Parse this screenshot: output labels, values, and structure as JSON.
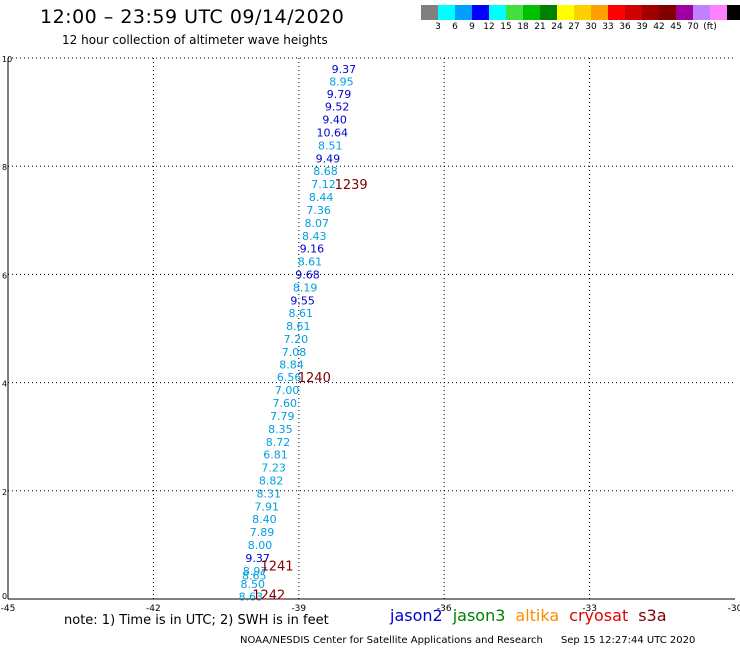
{
  "header": {
    "title": "12:00 – 23:59 UTC 09/14/2020",
    "subtitle": "12 hour collection of altimeter wave heights"
  },
  "color_scale": {
    "colors": [
      "#808080",
      "#00ffff",
      "#00a0ff",
      "#0000ff",
      "#00ffff",
      "#40e040",
      "#00c000",
      "#008000",
      "#ffff00",
      "#ffd000",
      "#ffa000",
      "#ff0000",
      "#d00000",
      "#a00000",
      "#800000",
      "#a000a0",
      "#c080ff",
      "#ff80ff",
      "#000000"
    ],
    "labels": [
      "3",
      "6",
      "9",
      "12",
      "15",
      "18",
      "21",
      "24",
      "27",
      "30",
      "33",
      "36",
      "39",
      "42",
      "45",
      "70",
      "(ft)"
    ]
  },
  "chart_data": {
    "type": "scatter",
    "title": "12:00 – 23:59 UTC 09/14/2020",
    "subtitle": "12 hour collection of altimeter wave heights",
    "xlim": [
      -45,
      -30
    ],
    "ylim": [
      0,
      10
    ],
    "x_ticks": [
      "-45",
      "-42",
      "-39",
      "-36",
      "-33",
      "-30"
    ],
    "y_ticks": [
      "0",
      "2",
      "4",
      "6",
      "8",
      "10"
    ],
    "grid": true,
    "points": [
      {
        "x": -38.07,
        "y": 9.8,
        "v": "9.37",
        "color": "#0000cc"
      },
      {
        "x": -38.12,
        "y": 9.57,
        "v": "8.95",
        "color": "#00a0e0"
      },
      {
        "x": -38.17,
        "y": 9.33,
        "v": "9.79",
        "color": "#0000cc"
      },
      {
        "x": -38.21,
        "y": 9.1,
        "v": "9.52",
        "color": "#0000cc"
      },
      {
        "x": -38.26,
        "y": 8.86,
        "v": "9.40",
        "color": "#0000cc"
      },
      {
        "x": -38.31,
        "y": 8.62,
        "v": "10.64",
        "color": "#0000cc"
      },
      {
        "x": -38.35,
        "y": 8.38,
        "v": "8.51",
        "color": "#00a0e0"
      },
      {
        "x": -38.4,
        "y": 8.14,
        "v": "9.49",
        "color": "#0000cc"
      },
      {
        "x": -38.45,
        "y": 7.91,
        "v": "8.68",
        "color": "#00a0e0"
      },
      {
        "x": -38.49,
        "y": 7.67,
        "v": "7.12",
        "color": "#00a0e0"
      },
      {
        "x": -38.54,
        "y": 7.43,
        "v": "8.44",
        "color": "#00a0e0"
      },
      {
        "x": -38.59,
        "y": 7.19,
        "v": "7.36",
        "color": "#00a0e0"
      },
      {
        "x": -38.63,
        "y": 6.95,
        "v": "8.07",
        "color": "#00a0e0"
      },
      {
        "x": -38.68,
        "y": 6.71,
        "v": "8.43",
        "color": "#00a0e0"
      },
      {
        "x": -38.73,
        "y": 6.48,
        "v": "9.16",
        "color": "#0000cc"
      },
      {
        "x": -38.77,
        "y": 6.24,
        "v": "8.61",
        "color": "#00a0e0"
      },
      {
        "x": -38.82,
        "y": 6.0,
        "v": "9.68",
        "color": "#0000cc"
      },
      {
        "x": -38.87,
        "y": 5.76,
        "v": "8.19",
        "color": "#00a0e0"
      },
      {
        "x": -38.92,
        "y": 5.52,
        "v": "9.55",
        "color": "#0000cc"
      },
      {
        "x": -38.96,
        "y": 5.29,
        "v": "8.61",
        "color": "#00a0e0"
      },
      {
        "x": -39.01,
        "y": 5.05,
        "v": "8.61",
        "color": "#00a0e0"
      },
      {
        "x": -39.06,
        "y": 4.81,
        "v": "7.20",
        "color": "#00a0e0"
      },
      {
        "x": -39.1,
        "y": 4.57,
        "v": "7.08",
        "color": "#00a0e0"
      },
      {
        "x": -39.15,
        "y": 4.33,
        "v": "8.84",
        "color": "#00a0e0"
      },
      {
        "x": -39.2,
        "y": 4.1,
        "v": "6.56",
        "color": "#00a0e0"
      },
      {
        "x": -39.24,
        "y": 3.86,
        "v": "7.00",
        "color": "#00a0e0"
      },
      {
        "x": -39.29,
        "y": 3.62,
        "v": "7.60",
        "color": "#00a0e0"
      },
      {
        "x": -39.34,
        "y": 3.38,
        "v": "7.79",
        "color": "#00a0e0"
      },
      {
        "x": -39.38,
        "y": 3.14,
        "v": "8.35",
        "color": "#00a0e0"
      },
      {
        "x": -39.43,
        "y": 2.9,
        "v": "8.72",
        "color": "#00a0e0"
      },
      {
        "x": -39.48,
        "y": 2.67,
        "v": "6.81",
        "color": "#00a0e0"
      },
      {
        "x": -39.52,
        "y": 2.43,
        "v": "7.23",
        "color": "#00a0e0"
      },
      {
        "x": -39.57,
        "y": 2.19,
        "v": "8.82",
        "color": "#00a0e0"
      },
      {
        "x": -39.62,
        "y": 1.95,
        "v": "8.31",
        "color": "#00a0e0"
      },
      {
        "x": -39.66,
        "y": 1.71,
        "v": "7.91",
        "color": "#00a0e0"
      },
      {
        "x": -39.71,
        "y": 1.48,
        "v": "8.40",
        "color": "#00a0e0"
      },
      {
        "x": -39.76,
        "y": 1.24,
        "v": "7.89",
        "color": "#00a0e0"
      },
      {
        "x": -39.8,
        "y": 1.0,
        "v": "8.00",
        "color": "#00a0e0"
      },
      {
        "x": -39.85,
        "y": 0.76,
        "v": "9.37",
        "color": "#0000cc"
      },
      {
        "x": -39.9,
        "y": 0.52,
        "v": "8.97",
        "color": "#00a0e0"
      },
      {
        "x": -39.92,
        "y": 0.43,
        "v": "8.65",
        "color": "#00a0e0"
      },
      {
        "x": -39.95,
        "y": 0.28,
        "v": "8.50",
        "color": "#00a0e0"
      },
      {
        "x": -39.99,
        "y": 0.05,
        "v": "8.63",
        "color": "#00a0e0"
      }
    ],
    "annotations": [
      {
        "x": -37.92,
        "y": 7.67,
        "text": "1239",
        "color": "#800000"
      },
      {
        "x": -38.68,
        "y": 4.1,
        "text": "1240",
        "color": "#800000"
      },
      {
        "x": -39.45,
        "y": 0.62,
        "text": "1241",
        "color": "#800000"
      },
      {
        "x": -39.62,
        "y": 0.08,
        "text": "1242",
        "color": "#800000"
      }
    ]
  },
  "footer": {
    "note": "note:  1) Time is in UTC; 2) SWH is in feet",
    "satellites": [
      {
        "name": "jason2",
        "color": "#0000cc"
      },
      {
        "name": "jason3",
        "color": "#008000"
      },
      {
        "name": "altika",
        "color": "#ff8c00"
      },
      {
        "name": "cryosat",
        "color": "#e00000"
      },
      {
        "name": "s3a",
        "color": "#800000"
      }
    ],
    "credit": "NOAA/NESDIS Center for Satellite Applications and Research",
    "timestamp": "Sep 15 12:27:44 UTC 2020"
  }
}
